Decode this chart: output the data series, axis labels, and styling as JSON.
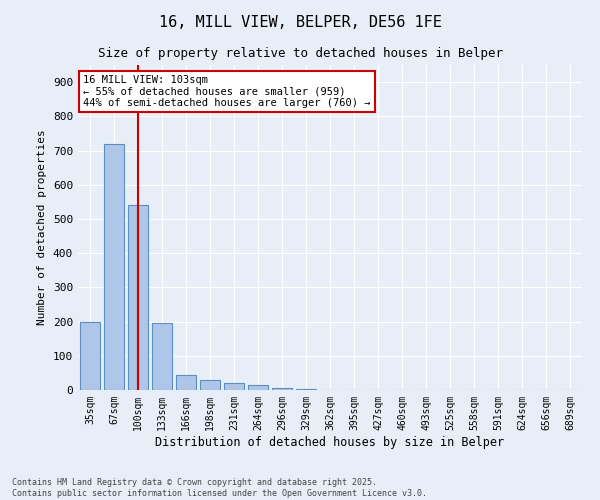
{
  "title_line1": "16, MILL VIEW, BELPER, DE56 1FE",
  "title_line2": "Size of property relative to detached houses in Belper",
  "xlabel": "Distribution of detached houses by size in Belper",
  "ylabel": "Number of detached properties",
  "categories": [
    "35sqm",
    "67sqm",
    "100sqm",
    "133sqm",
    "166sqm",
    "198sqm",
    "231sqm",
    "264sqm",
    "296sqm",
    "329sqm",
    "362sqm",
    "395sqm",
    "427sqm",
    "460sqm",
    "493sqm",
    "525sqm",
    "558sqm",
    "591sqm",
    "624sqm",
    "656sqm",
    "689sqm"
  ],
  "values": [
    200,
    720,
    540,
    195,
    45,
    30,
    20,
    15,
    5,
    3,
    0,
    0,
    0,
    0,
    0,
    0,
    0,
    0,
    0,
    0,
    0
  ],
  "bar_color": "#aec6e8",
  "bar_edge_color": "#5a8fc0",
  "vline_x_index": 2,
  "vline_color": "#cc0000",
  "annotation_text": "16 MILL VIEW: 103sqm\n← 55% of detached houses are smaller (959)\n44% of semi-detached houses are larger (760) →",
  "annotation_box_color": "#ffffff",
  "annotation_box_edge_color": "#cc0000",
  "ylim": [
    0,
    950
  ],
  "yticks": [
    0,
    100,
    200,
    300,
    400,
    500,
    600,
    700,
    800,
    900
  ],
  "background_color": "#e8eef8",
  "grid_color": "#ffffff",
  "footer_line1": "Contains HM Land Registry data © Crown copyright and database right 2025.",
  "footer_line2": "Contains public sector information licensed under the Open Government Licence v3.0."
}
